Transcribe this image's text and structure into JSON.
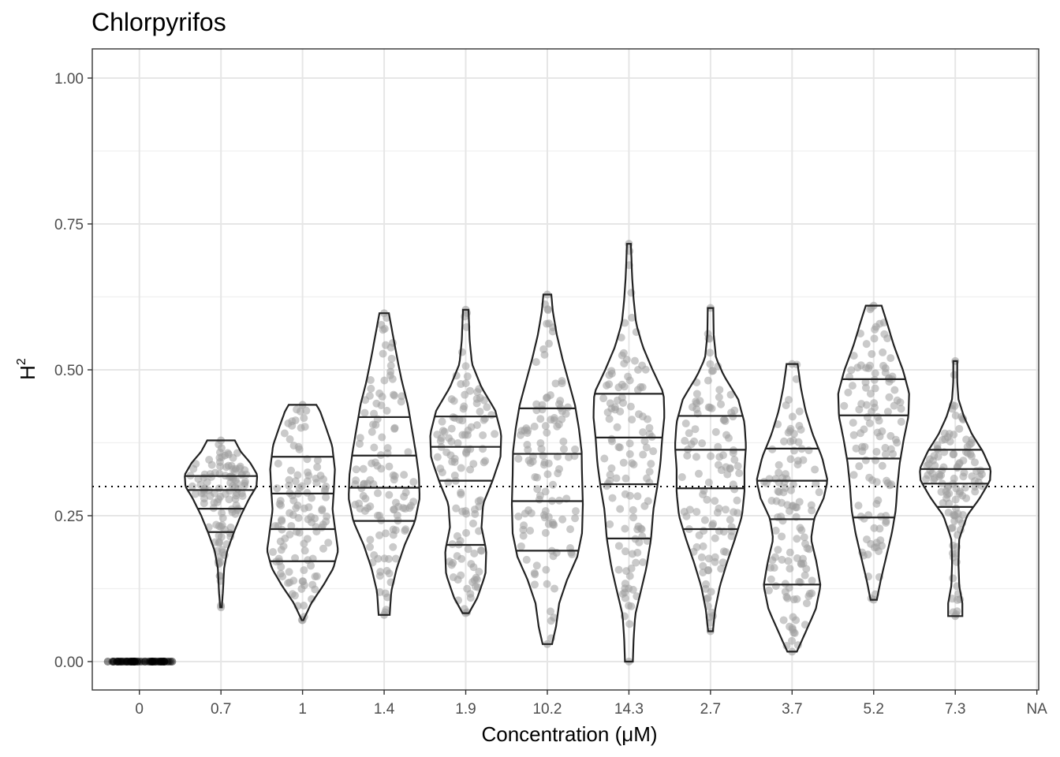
{
  "chart_data": {
    "type": "violin",
    "title": "Chlorpyrifos",
    "xlabel": "Concentration (μM)",
    "ylabel_base": "H",
    "ylabel_sup": "2",
    "categories": [
      "0",
      "0.7",
      "1",
      "1.4",
      "1.9",
      "10.2",
      "14.3",
      "2.7",
      "3.7",
      "5.2",
      "7.3",
      "NA"
    ],
    "ylim": [
      -0.05,
      1.05
    ],
    "yticks": [
      0.0,
      0.25,
      0.5,
      0.75,
      1.0
    ],
    "ytick_labels": [
      "0.00",
      "0.25",
      "0.50",
      "0.75",
      "1.00"
    ],
    "reference_line": 0.3,
    "grid": true,
    "point_color": "#9e9e9e",
    "outline_color": "#222222",
    "violins": [
      {
        "category": "0",
        "min": 0.0,
        "max": 0.0,
        "quantiles": [],
        "points_only": true,
        "n_points": 60
      },
      {
        "category": "0.7",
        "min": 0.093,
        "max": 0.379,
        "quantiles": [
          0.222,
          0.262,
          0.294,
          0.318
        ],
        "profile": [
          [
            0.093,
            0.02
          ],
          [
            0.12,
            0.05
          ],
          [
            0.16,
            0.08
          ],
          [
            0.19,
            0.16
          ],
          [
            0.22,
            0.32
          ],
          [
            0.25,
            0.5
          ],
          [
            0.28,
            0.72
          ],
          [
            0.3,
            0.9
          ],
          [
            0.32,
            0.92
          ],
          [
            0.34,
            0.75
          ],
          [
            0.36,
            0.5
          ],
          [
            0.379,
            0.35
          ]
        ]
      },
      {
        "category": "1",
        "min": 0.071,
        "max": 0.44,
        "quantiles": [
          0.172,
          0.227,
          0.288,
          0.351
        ],
        "profile": [
          [
            0.071,
            0.02
          ],
          [
            0.1,
            0.22
          ],
          [
            0.13,
            0.52
          ],
          [
            0.16,
            0.78
          ],
          [
            0.19,
            0.9
          ],
          [
            0.23,
            0.82
          ],
          [
            0.26,
            0.76
          ],
          [
            0.29,
            0.79
          ],
          [
            0.33,
            0.82
          ],
          [
            0.37,
            0.75
          ],
          [
            0.4,
            0.6
          ],
          [
            0.43,
            0.44
          ],
          [
            0.44,
            0.35
          ]
        ]
      },
      {
        "category": "1.4",
        "min": 0.08,
        "max": 0.597,
        "quantiles": [
          0.241,
          0.298,
          0.353,
          0.419
        ],
        "profile": [
          [
            0.08,
            0.14
          ],
          [
            0.12,
            0.18
          ],
          [
            0.16,
            0.32
          ],
          [
            0.2,
            0.52
          ],
          [
            0.24,
            0.78
          ],
          [
            0.28,
            0.9
          ],
          [
            0.32,
            0.88
          ],
          [
            0.36,
            0.8
          ],
          [
            0.4,
            0.7
          ],
          [
            0.44,
            0.6
          ],
          [
            0.48,
            0.45
          ],
          [
            0.52,
            0.33
          ],
          [
            0.56,
            0.22
          ],
          [
            0.597,
            0.12
          ]
        ]
      },
      {
        "category": "1.9",
        "min": 0.083,
        "max": 0.603,
        "quantiles": [
          0.2,
          0.31,
          0.368,
          0.42
        ],
        "profile": [
          [
            0.083,
            0.08
          ],
          [
            0.11,
            0.3
          ],
          [
            0.15,
            0.5
          ],
          [
            0.19,
            0.52
          ],
          [
            0.23,
            0.4
          ],
          [
            0.27,
            0.44
          ],
          [
            0.31,
            0.68
          ],
          [
            0.35,
            0.88
          ],
          [
            0.39,
            0.9
          ],
          [
            0.43,
            0.75
          ],
          [
            0.47,
            0.4
          ],
          [
            0.51,
            0.16
          ],
          [
            0.55,
            0.1
          ],
          [
            0.603,
            0.07
          ]
        ]
      },
      {
        "category": "10.2",
        "min": 0.03,
        "max": 0.629,
        "quantiles": [
          0.19,
          0.275,
          0.356,
          0.434
        ],
        "profile": [
          [
            0.03,
            0.12
          ],
          [
            0.06,
            0.22
          ],
          [
            0.1,
            0.3
          ],
          [
            0.14,
            0.5
          ],
          [
            0.18,
            0.76
          ],
          [
            0.22,
            0.88
          ],
          [
            0.27,
            0.9
          ],
          [
            0.32,
            0.88
          ],
          [
            0.36,
            0.87
          ],
          [
            0.4,
            0.8
          ],
          [
            0.44,
            0.7
          ],
          [
            0.48,
            0.54
          ],
          [
            0.52,
            0.38
          ],
          [
            0.56,
            0.24
          ],
          [
            0.6,
            0.14
          ],
          [
            0.629,
            0.1
          ]
        ]
      },
      {
        "category": "14.3",
        "min": 0.0,
        "max": 0.716,
        "quantiles": [
          0.211,
          0.304,
          0.384,
          0.459
        ],
        "profile": [
          [
            0.0,
            0.1
          ],
          [
            0.04,
            0.12
          ],
          [
            0.08,
            0.16
          ],
          [
            0.12,
            0.3
          ],
          [
            0.16,
            0.44
          ],
          [
            0.21,
            0.56
          ],
          [
            0.26,
            0.62
          ],
          [
            0.3,
            0.72
          ],
          [
            0.34,
            0.8
          ],
          [
            0.38,
            0.84
          ],
          [
            0.42,
            0.9
          ],
          [
            0.46,
            0.88
          ],
          [
            0.5,
            0.6
          ],
          [
            0.54,
            0.35
          ],
          [
            0.58,
            0.18
          ],
          [
            0.62,
            0.12
          ],
          [
            0.66,
            0.08
          ],
          [
            0.716,
            0.05
          ]
        ]
      },
      {
        "category": "2.7",
        "min": 0.052,
        "max": 0.606,
        "quantiles": [
          0.227,
          0.297,
          0.363,
          0.421
        ],
        "profile": [
          [
            0.052,
            0.06
          ],
          [
            0.09,
            0.12
          ],
          [
            0.13,
            0.24
          ],
          [
            0.17,
            0.42
          ],
          [
            0.21,
            0.62
          ],
          [
            0.25,
            0.8
          ],
          [
            0.29,
            0.86
          ],
          [
            0.33,
            0.86
          ],
          [
            0.37,
            0.9
          ],
          [
            0.41,
            0.86
          ],
          [
            0.45,
            0.7
          ],
          [
            0.49,
            0.34
          ],
          [
            0.52,
            0.14
          ],
          [
            0.56,
            0.08
          ],
          [
            0.606,
            0.07
          ]
        ]
      },
      {
        "category": "3.7",
        "min": 0.017,
        "max": 0.51,
        "quantiles": [
          0.132,
          0.244,
          0.31,
          0.365
        ],
        "profile": [
          [
            0.017,
            0.12
          ],
          [
            0.05,
            0.34
          ],
          [
            0.09,
            0.6
          ],
          [
            0.13,
            0.72
          ],
          [
            0.17,
            0.62
          ],
          [
            0.21,
            0.48
          ],
          [
            0.245,
            0.56
          ],
          [
            0.28,
            0.8
          ],
          [
            0.31,
            0.9
          ],
          [
            0.35,
            0.76
          ],
          [
            0.39,
            0.52
          ],
          [
            0.43,
            0.34
          ],
          [
            0.47,
            0.22
          ],
          [
            0.51,
            0.14
          ]
        ]
      },
      {
        "category": "5.2",
        "min": 0.106,
        "max": 0.61,
        "quantiles": [
          0.247,
          0.348,
          0.422,
          0.484
        ],
        "profile": [
          [
            0.106,
            0.08
          ],
          [
            0.14,
            0.18
          ],
          [
            0.18,
            0.32
          ],
          [
            0.22,
            0.46
          ],
          [
            0.26,
            0.56
          ],
          [
            0.3,
            0.6
          ],
          [
            0.34,
            0.66
          ],
          [
            0.38,
            0.76
          ],
          [
            0.42,
            0.88
          ],
          [
            0.46,
            0.9
          ],
          [
            0.5,
            0.74
          ],
          [
            0.54,
            0.52
          ],
          [
            0.58,
            0.34
          ],
          [
            0.61,
            0.2
          ]
        ]
      },
      {
        "category": "7.3",
        "min": 0.078,
        "max": 0.515,
        "quantiles": [
          0.265,
          0.305,
          0.33,
          0.363
        ],
        "profile": [
          [
            0.078,
            0.18
          ],
          [
            0.1,
            0.18
          ],
          [
            0.13,
            0.1
          ],
          [
            0.17,
            0.08
          ],
          [
            0.21,
            0.1
          ],
          [
            0.25,
            0.3
          ],
          [
            0.28,
            0.62
          ],
          [
            0.31,
            0.88
          ],
          [
            0.33,
            0.9
          ],
          [
            0.36,
            0.7
          ],
          [
            0.39,
            0.42
          ],
          [
            0.42,
            0.22
          ],
          [
            0.45,
            0.08
          ],
          [
            0.48,
            0.05
          ],
          [
            0.515,
            0.05
          ]
        ]
      },
      {
        "category": "NA",
        "min": null,
        "max": null,
        "quantiles": [],
        "empty": true
      }
    ]
  }
}
